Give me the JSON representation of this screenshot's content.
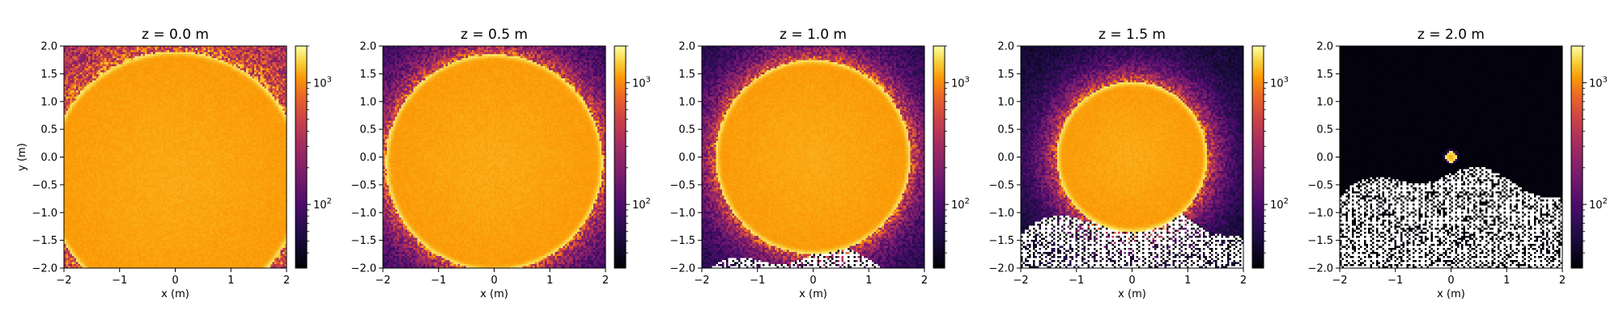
{
  "chart_data": {
    "type": "heatmap",
    "colormap": "inferno",
    "color_scale": "log",
    "colorbar": {
      "range": [
        30,
        2000
      ],
      "major_ticks": [
        {
          "value": 100,
          "label": "10",
          "exp": "2"
        },
        {
          "value": 1000,
          "label": "10",
          "exp": "3"
        }
      ],
      "minor_ticks": [
        40,
        50,
        60,
        70,
        80,
        90,
        200,
        300,
        400,
        500,
        600,
        700,
        800,
        900,
        2000
      ]
    },
    "xlabel": "x (m)",
    "ylabel": "y (m)",
    "xlim": [
      -2,
      2
    ],
    "ylim": [
      -2,
      2
    ],
    "x_ticks": [
      {
        "value": -2,
        "label": "−2"
      },
      {
        "value": -1,
        "label": "−1"
      },
      {
        "value": 0,
        "label": "0"
      },
      {
        "value": 1,
        "label": "1"
      },
      {
        "value": 2,
        "label": "2"
      }
    ],
    "y_ticks": [
      {
        "value": 2,
        "label": "2.0"
      },
      {
        "value": 1.5,
        "label": "1.5"
      },
      {
        "value": 1,
        "label": "1.0"
      },
      {
        "value": 0.5,
        "label": "0.5"
      },
      {
        "value": 0,
        "label": "0.0"
      },
      {
        "value": -0.5,
        "label": "−0.5"
      },
      {
        "value": -1,
        "label": "−1.0"
      },
      {
        "value": -1.5,
        "label": "−1.5"
      },
      {
        "value": -2,
        "label": "−2.0"
      }
    ],
    "panels": [
      {
        "title": "z = 0.0 m",
        "circle_center": [
          0,
          -0.4
        ],
        "circle_radius": 2.3,
        "outside_level": 0.35,
        "masked_threshold": null
      },
      {
        "title": "z = 0.5 m",
        "circle_center": [
          0,
          -0.1
        ],
        "circle_radius": 1.95,
        "outside_level": 0.25,
        "masked_threshold": null
      },
      {
        "title": "z = 1.0 m",
        "circle_center": [
          0,
          0.0
        ],
        "circle_radius": 1.75,
        "outside_level": 0.2,
        "masked_threshold": -1.75
      },
      {
        "title": "z = 1.5 m",
        "circle_center": [
          0,
          0.0
        ],
        "circle_radius": 1.35,
        "outside_level": 0.15,
        "masked_threshold": -1.0
      },
      {
        "title": "z = 2.0 m",
        "circle_center": [
          0,
          0.0
        ],
        "circle_radius": 0.1,
        "outside_level": 0.02,
        "masked_threshold": -0.3
      }
    ]
  }
}
